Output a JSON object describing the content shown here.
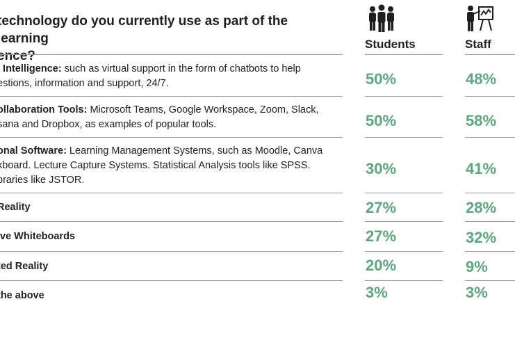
{
  "question": "technology do you currently use as part of the learning\nence?",
  "columns": [
    {
      "label": "Students",
      "icon": "group-people-icon"
    },
    {
      "label": "Staff",
      "icon": "presenter-at-board-icon"
    }
  ],
  "rows": [
    {
      "title": "l Intelligence:",
      "description": " such as virtual support in the form of chatbots to help\nestions, information and support, 24/7.",
      "students": "50%",
      "staff": "48%"
    },
    {
      "title": "ollaboration Tools:",
      "description": " Microsoft Teams, Google Workspace, Zoom, Slack,\nsana and Dropbox, as examples of popular tools.",
      "students": "50%",
      "staff": "58%"
    },
    {
      "title": "onal Software:",
      "description": " Learning Management Systems, such as Moodle, Canva\nkboard. Lecture Capture Systems. Statistical Analysis tools like SPSS.\nbraries like JSTOR.",
      "students": "30%",
      "staff": "41%"
    },
    {
      "title": "Reality",
      "description": "",
      "students": "27%",
      "staff": "28%"
    },
    {
      "title": "ive Whiteboards",
      "description": "",
      "students": "27%",
      "staff": "32%"
    },
    {
      "title": "ted Reality",
      "description": "",
      "students": "20%",
      "staff": "9%"
    },
    {
      "title": "the above",
      "description": "",
      "students": "3%",
      "staff": "3%"
    }
  ],
  "colors": {
    "percent": "#5aa87c",
    "text": "#1f1f1f",
    "rule": "#9a9a9a"
  },
  "chart_data": {
    "type": "table",
    "columns": [
      "Students",
      "Staff"
    ],
    "categories": [
      "l Intelligence",
      "ollaboration Tools",
      "onal Software",
      "Reality",
      "ive Whiteboards",
      "ted Reality",
      "the above"
    ],
    "series": [
      {
        "name": "Students",
        "values": [
          50,
          50,
          30,
          27,
          27,
          20,
          3
        ]
      },
      {
        "name": "Staff",
        "values": [
          48,
          58,
          41,
          28,
          32,
          9,
          3
        ]
      }
    ]
  }
}
